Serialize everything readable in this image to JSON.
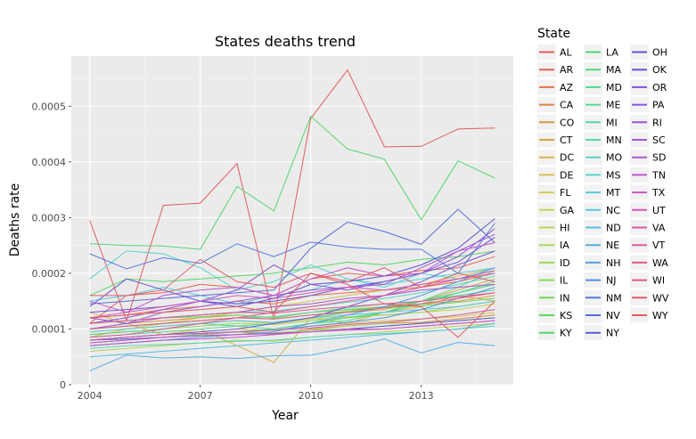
{
  "chart_data": {
    "type": "line",
    "title": "States deaths trend",
    "xlabel": "Year",
    "ylabel": "Deaths rate",
    "x": [
      2004,
      2005,
      2006,
      2007,
      2008,
      2009,
      2010,
      2011,
      2012,
      2013,
      2014,
      2015
    ],
    "xlim": [
      2003.5,
      2015.5
    ],
    "ylim": [
      0,
      0.00059
    ],
    "x_ticks": [
      {
        "value": 2004,
        "label": "2004"
      },
      {
        "value": 2007,
        "label": "2007"
      },
      {
        "value": 2010,
        "label": "2010"
      },
      {
        "value": 2013,
        "label": "2013"
      }
    ],
    "y_ticks": [
      {
        "value": 0,
        "label": "0"
      },
      {
        "value": 0.0001,
        "label": "0.0001"
      },
      {
        "value": 0.0002,
        "label": "0.0002"
      },
      {
        "value": 0.0003,
        "label": "0.0003"
      },
      {
        "value": 0.0004,
        "label": "0.0004"
      },
      {
        "value": 0.0005,
        "label": "0.0005"
      }
    ],
    "grid": true,
    "legend": {
      "title": "State",
      "placement": "right",
      "columns": 3
    },
    "series": [
      {
        "name": "AL",
        "color": "#e35c5e",
        "values": [
          0.000295,
          0.000115,
          0.000322,
          0.000326,
          0.000397,
          0.000118,
          0.000478,
          0.000565,
          0.000427,
          0.000428,
          0.000459,
          0.000461
        ]
      },
      {
        "name": "AR",
        "color": "#e56253",
        "values": [
          0.00011,
          0.00016,
          0.000165,
          0.00018,
          0.000175,
          0.00016,
          0.00019,
          0.0002,
          0.000195,
          0.000205,
          0.00021,
          0.00023
        ]
      },
      {
        "name": "AZ",
        "color": "#e2714a",
        "values": [
          0.00012,
          0.000125,
          0.000135,
          0.00014,
          0.00015,
          0.000145,
          0.00016,
          0.000165,
          0.00017,
          0.000175,
          0.000185,
          0.0002
        ]
      },
      {
        "name": "CA",
        "color": "#de8345",
        "values": [
          7.5e-05,
          8e-05,
          8.5e-05,
          9e-05,
          9.5e-05,
          9e-05,
          0.0001,
          0.000105,
          0.00011,
          0.000112,
          0.000118,
          0.000125
        ]
      },
      {
        "name": "CO",
        "color": "#d9943f",
        "values": [
          0.0001,
          0.00011,
          0.000115,
          0.00012,
          0.000125,
          0.00012,
          0.00013,
          0.000135,
          0.00014,
          0.000145,
          0.00015,
          0.00016
        ]
      },
      {
        "name": "CT",
        "color": "#d6a240",
        "values": [
          9e-05,
          9.5e-05,
          0.0001,
          0.00011,
          0.000115,
          0.00011,
          0.00012,
          0.00013,
          0.000135,
          0.00015,
          0.00017,
          0.00019
        ]
      },
      {
        "name": "DC",
        "color": "#d6b24a",
        "values": [
          0.00013,
          0.00011,
          9e-05,
          0.0001,
          7e-05,
          4e-05,
          0.00012,
          0.00011,
          0.00013,
          0.00014,
          0.00016,
          0.00015
        ]
      },
      {
        "name": "DE",
        "color": "#d6c050",
        "values": [
          8.5e-05,
          0.0001,
          0.00011,
          0.00012,
          0.00013,
          0.00014,
          0.00015,
          0.00016,
          0.00017,
          0.00018,
          0.000195,
          0.00021
        ]
      },
      {
        "name": "FL",
        "color": "#d1cb55",
        "values": [
          8e-05,
          8.5e-05,
          9e-05,
          9.5e-05,
          0.0001,
          9.8e-05,
          0.000105,
          0.00011,
          0.000115,
          0.000118,
          0.000122,
          0.00013
        ]
      },
      {
        "name": "GA",
        "color": "#c5d155",
        "values": [
          9.5e-05,
          0.0001,
          0.000105,
          0.00011,
          0.000115,
          0.00011,
          0.000118,
          0.000122,
          0.000125,
          0.00013,
          0.000135,
          0.000145
        ]
      },
      {
        "name": "HI",
        "color": "#b8d455",
        "values": [
          6e-05,
          6.5e-05,
          7e-05,
          7.5e-05,
          8e-05,
          7.8e-05,
          8.5e-05,
          9e-05,
          9.5e-05,
          0.0001,
          0.000105,
          0.00011
        ]
      },
      {
        "name": "IA",
        "color": "#a9d756",
        "values": [
          7e-05,
          7.5e-05,
          8e-05,
          8.5e-05,
          9e-05,
          9.2e-05,
          9.8e-05,
          0.000105,
          0.00011,
          0.000118,
          0.000125,
          0.000135
        ]
      },
      {
        "name": "ID",
        "color": "#99d958",
        "values": [
          9e-05,
          9.5e-05,
          0.0001,
          0.000105,
          0.00011,
          0.000108,
          0.000115,
          0.00012,
          0.000125,
          0.00013,
          0.00014,
          0.00015
        ]
      },
      {
        "name": "IL",
        "color": "#88d95a",
        "values": [
          8e-05,
          8.5e-05,
          9e-05,
          9.2e-05,
          9.5e-05,
          9.3e-05,
          9.8e-05,
          0.0001,
          0.000105,
          0.00011,
          0.000115,
          0.00012
        ]
      },
      {
        "name": "IN",
        "color": "#75d95c",
        "values": [
          0.0001,
          0.000105,
          0.00011,
          0.000115,
          0.00012,
          0.000118,
          0.000125,
          0.000132,
          0.00014,
          0.00015,
          0.000165,
          0.00018
        ]
      },
      {
        "name": "KS",
        "color": "#62d860",
        "values": [
          0.00011,
          0.000115,
          0.00012,
          0.000122,
          0.000125,
          0.00012,
          0.00013,
          0.000135,
          0.000138,
          0.000142,
          0.000148,
          0.000155
        ]
      },
      {
        "name": "KY",
        "color": "#55d766",
        "values": [
          0.00016,
          0.00019,
          0.000185,
          0.00019,
          0.000195,
          0.0002,
          0.00021,
          0.00022,
          0.000215,
          0.000225,
          0.00023,
          0.00024
        ]
      },
      {
        "name": "LA",
        "color": "#52d670",
        "values": [
          0.000253,
          0.00025,
          0.000249,
          0.000243,
          0.000356,
          0.000312,
          0.000482,
          0.000423,
          0.000405,
          0.000296,
          0.000402,
          0.000371
        ]
      },
      {
        "name": "MA",
        "color": "#52d67c",
        "values": [
          7.5e-05,
          8e-05,
          8.5e-05,
          9e-05,
          9.5e-05,
          0.0001,
          0.00011,
          0.00012,
          0.00013,
          0.000145,
          0.000165,
          0.000185
        ]
      },
      {
        "name": "MD",
        "color": "#53d689",
        "values": [
          9e-05,
          9.5e-05,
          0.0001,
          0.00011,
          0.000105,
          0.0001,
          0.00011,
          0.000115,
          0.00013,
          0.00015,
          0.000175,
          0.000205
        ]
      },
      {
        "name": "ME",
        "color": "#55d697",
        "values": [
          8.5e-05,
          9e-05,
          9.5e-05,
          0.0001,
          0.000105,
          0.00011,
          0.00012,
          0.00013,
          0.00014,
          0.00015,
          0.000165,
          0.00018
        ]
      },
      {
        "name": "MI",
        "color": "#57d6a5",
        "values": [
          0.0001,
          0.000105,
          0.00011,
          0.000115,
          0.00012,
          0.000122,
          0.00013,
          0.000138,
          0.000145,
          0.00015,
          0.00016,
          0.00017
        ]
      },
      {
        "name": "MN",
        "color": "#58d5b3",
        "values": [
          6.5e-05,
          7e-05,
          7.2e-05,
          7.5e-05,
          7.8e-05,
          8e-05,
          8.5e-05,
          9e-05,
          9.2e-05,
          9.5e-05,
          0.0001,
          0.000105
        ]
      },
      {
        "name": "MO",
        "color": "#59d4c1",
        "values": [
          0.00011,
          0.000115,
          0.00012,
          0.000125,
          0.00013,
          0.000132,
          0.00014,
          0.000148,
          0.000155,
          0.000165,
          0.00018,
          0.000195
        ]
      },
      {
        "name": "MS",
        "color": "#5ad2cf",
        "values": [
          0.00019,
          0.00024,
          0.000235,
          0.00021,
          0.00017,
          0.000185,
          0.000215,
          0.00019,
          0.000175,
          0.0002,
          0.00019,
          0.00021
        ]
      },
      {
        "name": "MT",
        "color": "#59cedb",
        "values": [
          0.00015,
          0.00016,
          0.000175,
          0.00016,
          0.000145,
          0.00016,
          0.00017,
          0.00019,
          0.00018,
          0.00019,
          0.0002,
          0.00021
        ]
      },
      {
        "name": "NC",
        "color": "#58c6e0",
        "values": [
          9.5e-05,
          0.0001,
          0.000105,
          0.00011,
          0.000115,
          0.000112,
          0.00012,
          0.000125,
          0.00013,
          0.000135,
          0.00014,
          0.00015
        ]
      },
      {
        "name": "ND",
        "color": "#57bce2",
        "values": [
          5e-05,
          5.5e-05,
          6e-05,
          6.5e-05,
          7e-05,
          7.5e-05,
          8e-05,
          8.5e-05,
          9e-05,
          9.5e-05,
          0.0001,
          0.00011
        ]
      },
      {
        "name": "NE",
        "color": "#55afe3",
        "values": [
          2.5e-05,
          5.3e-05,
          4.8e-05,
          5e-05,
          4.7e-05,
          5.2e-05,
          5.3e-05,
          6.6e-05,
          8.2e-05,
          5.7e-05,
          7.6e-05,
          7e-05
        ]
      },
      {
        "name": "NH",
        "color": "#549fe2",
        "values": [
          7e-05,
          7.5e-05,
          8e-05,
          8.5e-05,
          9e-05,
          9.5e-05,
          0.00011,
          0.000125,
          0.00014,
          0.00016,
          0.000185,
          0.00021
        ]
      },
      {
        "name": "NJ",
        "color": "#538ee0",
        "values": [
          8e-05,
          8.5e-05,
          9e-05,
          9.2e-05,
          9.5e-05,
          9.8e-05,
          0.000105,
          0.000112,
          0.00012,
          0.000135,
          0.000155,
          0.000175
        ]
      },
      {
        "name": "NM",
        "color": "#547ddd",
        "values": [
          0.000235,
          0.000208,
          0.000228,
          0.000218,
          0.000253,
          0.00023,
          0.000256,
          0.000247,
          0.000243,
          0.000243,
          0.0002,
          0.00029
        ]
      },
      {
        "name": "NV",
        "color": "#576cd9",
        "values": [
          0.000145,
          0.00015,
          0.000155,
          0.00016,
          0.000165,
          0.00017,
          0.000245,
          0.000292,
          0.000275,
          0.000252,
          0.000315,
          0.000255
        ]
      },
      {
        "name": "NY",
        "color": "#5b5dd6",
        "values": [
          8e-05,
          8.2e-05,
          8.5e-05,
          8.8e-05,
          9e-05,
          9.2e-05,
          9.5e-05,
          0.0001,
          0.000105,
          0.00011,
          0.000115,
          0.00012
        ]
      },
      {
        "name": "OH",
        "color": "#6254d5",
        "values": [
          0.00014,
          0.00019,
          0.00017,
          0.00015,
          0.00014,
          0.000155,
          0.00018,
          0.000185,
          0.000195,
          0.000215,
          0.000245,
          0.000298
        ]
      },
      {
        "name": "OK",
        "color": "#6f53d6",
        "values": [
          0.00013,
          0.000135,
          0.00014,
          0.00015,
          0.000145,
          0.00015,
          0.00016,
          0.000175,
          0.000185,
          0.0002,
          0.00022,
          0.000265
        ]
      },
      {
        "name": "OR",
        "color": "#7c55d7",
        "values": [
          8e-05,
          8.5e-05,
          9e-05,
          9.5e-05,
          0.0001,
          0.00011,
          0.00012,
          0.00014,
          0.00016,
          0.000185,
          0.000215,
          0.00024
        ]
      },
      {
        "name": "PA",
        "color": "#8a56d6",
        "values": [
          0.00011,
          0.00012,
          0.000135,
          0.00015,
          0.00017,
          0.000215,
          0.00018,
          0.00017,
          0.000185,
          0.0002,
          0.00023,
          0.00028
        ]
      },
      {
        "name": "RI",
        "color": "#9856d5",
        "values": [
          0.00012,
          0.00011,
          0.00013,
          0.00014,
          0.00015,
          0.00016,
          0.00017,
          0.000175,
          0.00018,
          0.00021,
          0.00024,
          0.00027
        ]
      },
      {
        "name": "SC",
        "color": "#a655d3",
        "values": [
          0.0001,
          0.00011,
          0.00012,
          0.000125,
          0.00013,
          0.00014,
          0.000145,
          0.000155,
          0.00016,
          0.00017,
          0.000175,
          0.00018
        ]
      },
      {
        "name": "SD",
        "color": "#b354d1",
        "values": [
          7e-05,
          7.5e-05,
          8e-05,
          8.2e-05,
          8.5e-05,
          9e-05,
          9.5e-05,
          0.0001,
          0.0001,
          0.000105,
          0.00011,
          0.000115
        ]
      },
      {
        "name": "TN",
        "color": "#c154cf",
        "values": [
          0.00015,
          0.00013,
          0.00016,
          0.00017,
          0.000175,
          0.00016,
          0.00019,
          0.00021,
          0.000195,
          0.0002,
          0.00024,
          0.000255
        ]
      },
      {
        "name": "TX",
        "color": "#cc56c6",
        "values": [
          7.5e-05,
          8e-05,
          8.5e-05,
          8.8e-05,
          9e-05,
          9.2e-05,
          9.5e-05,
          9.8e-05,
          0.0001,
          0.000105,
          0.00011,
          0.000115
        ]
      },
      {
        "name": "UT",
        "color": "#d557b9",
        "values": [
          0.00012,
          0.00013,
          0.00014,
          0.00015,
          0.00016,
          0.000155,
          0.000165,
          0.000175,
          0.00017,
          0.00018,
          0.00019,
          0.0002
        ]
      },
      {
        "name": "VA",
        "color": "#da58aa",
        "values": [
          8e-05,
          8.5e-05,
          9e-05,
          9.2e-05,
          9.5e-05,
          9.8e-05,
          0.000102,
          0.000108,
          0.000112,
          0.000118,
          0.000125,
          0.000135
        ]
      },
      {
        "name": "VT",
        "color": "#dd599b",
        "values": [
          8.5e-05,
          9e-05,
          0.0001,
          0.00011,
          0.00012,
          0.00013,
          0.00014,
          0.00015,
          0.00016,
          0.000175,
          0.00019,
          0.000205
        ]
      },
      {
        "name": "WA",
        "color": "#df5a8c",
        "values": [
          0.00011,
          0.000115,
          0.00012,
          0.000125,
          0.00013,
          0.000128,
          0.000135,
          0.00014,
          0.000145,
          0.00015,
          0.000158,
          0.000165
        ]
      },
      {
        "name": "WI",
        "color": "#e05b7d",
        "values": [
          0.0001,
          0.000105,
          0.00011,
          0.000115,
          0.00012,
          0.000118,
          0.000125,
          0.00013,
          0.000138,
          0.000145,
          0.000155,
          0.000165
        ]
      },
      {
        "name": "WV",
        "color": "#e05c6d",
        "values": [
          0.00016,
          0.00016,
          0.00017,
          0.000225,
          0.000185,
          0.000175,
          0.0002,
          0.000185,
          0.00021,
          0.000175,
          0.0002,
          0.000185
        ]
      },
      {
        "name": "WY",
        "color": "#e15b60",
        "values": [
          0.00012,
          0.000125,
          0.00013,
          0.000135,
          0.00014,
          0.00013,
          0.0002,
          0.00018,
          0.000145,
          0.00014,
          8.5e-05,
          0.00015
        ]
      }
    ]
  }
}
